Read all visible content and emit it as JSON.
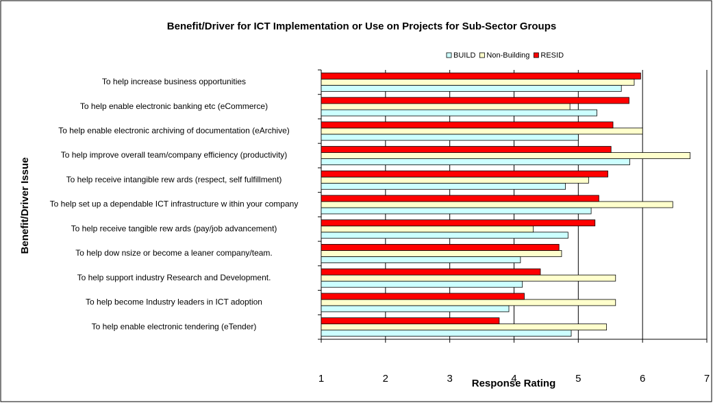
{
  "chart_data": {
    "type": "hbar",
    "title": "Benefit/Driver for ICT Implementation or Use on Projects for Sub-Sector Groups",
    "x_label": "Response Rating",
    "y_label": "Benefit/Driver Issue",
    "categories": [
      "To help increase business opportunities",
      "To help enable electronic banking etc (eCommerce)",
      "To help enable electronic archiving of documentation (eArchive)",
      "To help improve overall team/company efficiency (productivity)",
      "To help receive intangible rew ards (respect, self fulfillment)",
      "To help set up a dependable ICT infrastructure w ithin your company",
      "To help receive tangible rew ards (pay/job advancement)",
      "To help dow nsize or become a leaner company/team.",
      "To help support industry Research and Development.",
      "To help become Industry leaders in ICT adoption",
      "To help enable electronic tendering (eTender)"
    ],
    "series": [
      {
        "name": "BUILD",
        "color": "#ccffff",
        "values": [
          5.67,
          5.29,
          5.0,
          5.8,
          4.8,
          5.2,
          4.84,
          4.1,
          4.13,
          3.92,
          4.89
        ]
      },
      {
        "name": "Non-Building",
        "color": "#ffffcc",
        "values": [
          5.87,
          4.87,
          6.0,
          6.74,
          5.16,
          6.47,
          4.3,
          4.74,
          5.58,
          5.58,
          5.44
        ]
      },
      {
        "name": "RESID",
        "color": "#ff0000",
        "values": [
          5.97,
          5.79,
          5.54,
          5.51,
          5.46,
          5.32,
          5.26,
          4.7,
          4.41,
          4.16,
          3.77
        ]
      }
    ],
    "xlim": [
      1,
      7
    ],
    "xticks": [
      1,
      2,
      3,
      4,
      5,
      6,
      7
    ],
    "grid": true,
    "legend": "top"
  }
}
